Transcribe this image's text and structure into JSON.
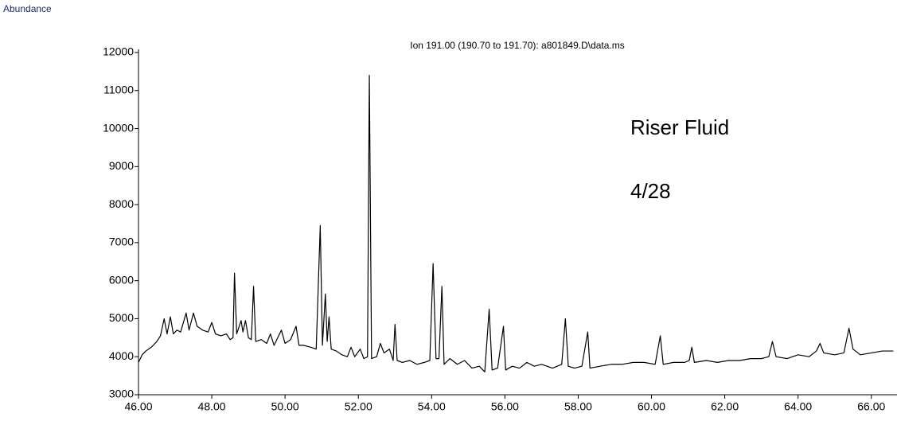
{
  "chart_data": {
    "type": "line",
    "y_label": "Abundance",
    "title": "Ion 191.00 (190.70 to 191.70): a801849.D\\data.ms",
    "annotations": [
      "Riser Fluid",
      "4/28"
    ],
    "xlim": [
      46,
      66.7
    ],
    "ylim": [
      3000,
      12000
    ],
    "xticks": [
      {
        "value": 46,
        "label": "46.00"
      },
      {
        "value": 48,
        "label": "48.00"
      },
      {
        "value": 50,
        "label": "50.00"
      },
      {
        "value": 52,
        "label": "52.00"
      },
      {
        "value": 54,
        "label": "54.00"
      },
      {
        "value": 56,
        "label": "56.00"
      },
      {
        "value": 58,
        "label": "58.00"
      },
      {
        "value": 60,
        "label": "60.00"
      },
      {
        "value": 62,
        "label": "62.00"
      },
      {
        "value": 64,
        "label": "64.00"
      },
      {
        "value": 66,
        "label": "66.00"
      }
    ],
    "yticks": [
      3000,
      4000,
      5000,
      6000,
      7000,
      8000,
      9000,
      10000,
      11000,
      12000
    ],
    "x": [
      46.0,
      46.1,
      46.2,
      46.35,
      46.5,
      46.6,
      46.7,
      46.78,
      46.87,
      46.95,
      47.05,
      47.15,
      47.3,
      47.38,
      47.5,
      47.6,
      47.75,
      47.9,
      48.0,
      48.1,
      48.25,
      48.4,
      48.5,
      48.58,
      48.62,
      48.68,
      48.8,
      48.85,
      48.92,
      49.0,
      49.08,
      49.14,
      49.2,
      49.35,
      49.5,
      49.6,
      49.7,
      49.9,
      50.0,
      50.15,
      50.3,
      50.38,
      50.5,
      50.7,
      50.85,
      50.96,
      51.02,
      51.1,
      51.15,
      51.2,
      51.26,
      51.4,
      51.55,
      51.7,
      51.8,
      51.9,
      52.05,
      52.15,
      52.25,
      52.3,
      52.36,
      52.5,
      52.6,
      52.7,
      52.85,
      52.95,
      53.0,
      53.06,
      53.2,
      53.4,
      53.6,
      53.8,
      53.95,
      54.04,
      54.12,
      54.2,
      54.28,
      54.34,
      54.5,
      54.7,
      54.9,
      55.1,
      55.3,
      55.45,
      55.57,
      55.65,
      55.8,
      55.96,
      56.02,
      56.2,
      56.4,
      56.6,
      56.8,
      57.0,
      57.3,
      57.55,
      57.65,
      57.73,
      57.9,
      58.1,
      58.26,
      58.32,
      58.6,
      58.9,
      59.2,
      59.5,
      59.8,
      60.1,
      60.24,
      60.32,
      60.6,
      60.9,
      61.03,
      61.1,
      61.17,
      61.5,
      61.8,
      62.1,
      62.4,
      62.7,
      63.0,
      63.2,
      63.3,
      63.4,
      63.7,
      64.0,
      64.3,
      64.5,
      64.6,
      64.7,
      65.0,
      65.25,
      65.39,
      65.5,
      65.7,
      66.0,
      66.3,
      66.6
    ],
    "series": [
      {
        "color": "#000000",
        "values": [
          3850,
          4050,
          4150,
          4250,
          4400,
          4550,
          5000,
          4600,
          5050,
          4600,
          4700,
          4650,
          5150,
          4700,
          5150,
          4800,
          4700,
          4650,
          4900,
          4600,
          4550,
          4600,
          4450,
          4500,
          6200,
          4600,
          4950,
          4650,
          4950,
          4500,
          4450,
          5850,
          4400,
          4450,
          4350,
          4600,
          4300,
          4700,
          4350,
          4450,
          4800,
          4300,
          4300,
          4250,
          4200,
          7450,
          4300,
          5650,
          4400,
          5050,
          4200,
          4150,
          4050,
          4000,
          4250,
          4000,
          4200,
          3950,
          4000,
          11400,
          3950,
          4000,
          4350,
          4100,
          4200,
          3900,
          4850,
          3900,
          3850,
          3900,
          3800,
          3850,
          3900,
          6450,
          3950,
          3950,
          5850,
          3800,
          3950,
          3800,
          3900,
          3700,
          3750,
          3600,
          5250,
          3650,
          3700,
          4800,
          3650,
          3750,
          3700,
          3850,
          3750,
          3800,
          3700,
          3800,
          5000,
          3750,
          3700,
          3750,
          4650,
          3700,
          3750,
          3800,
          3800,
          3850,
          3850,
          3800,
          4550,
          3800,
          3850,
          3850,
          3900,
          4250,
          3850,
          3900,
          3850,
          3900,
          3900,
          3950,
          3950,
          4000,
          4400,
          4000,
          3950,
          4050,
          4000,
          4150,
          4350,
          4100,
          4050,
          4100,
          4750,
          4200,
          4050,
          4100,
          4150,
          4150
        ]
      }
    ]
  }
}
